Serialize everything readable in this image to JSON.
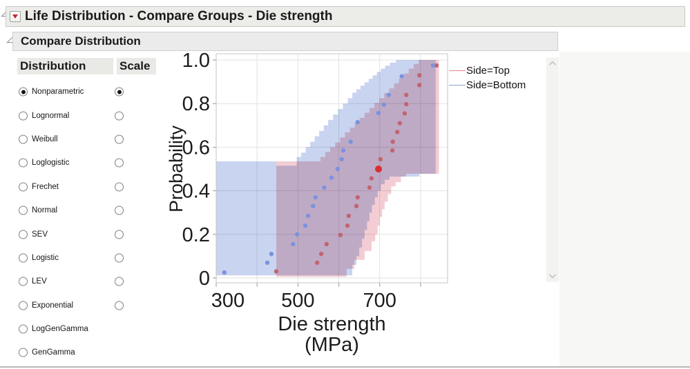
{
  "window": {
    "title": "Life Distribution - Compare Groups - Die strength",
    "section_title": "Compare Distribution"
  },
  "panel": {
    "columns": [
      "Distribution",
      "Scale"
    ],
    "rows": [
      {
        "label": "Nonparametric",
        "dist_selected": true,
        "scale_selected": true,
        "has_scale": true
      },
      {
        "label": "Lognormal",
        "dist_selected": false,
        "scale_selected": false,
        "has_scale": true
      },
      {
        "label": "Weibull",
        "dist_selected": false,
        "scale_selected": false,
        "has_scale": true
      },
      {
        "label": "Loglogistic",
        "dist_selected": false,
        "scale_selected": false,
        "has_scale": true
      },
      {
        "label": "Frechet",
        "dist_selected": false,
        "scale_selected": false,
        "has_scale": true
      },
      {
        "label": "Normal",
        "dist_selected": false,
        "scale_selected": false,
        "has_scale": true
      },
      {
        "label": "SEV",
        "dist_selected": false,
        "scale_selected": false,
        "has_scale": true
      },
      {
        "label": "Logistic",
        "dist_selected": false,
        "scale_selected": false,
        "has_scale": true
      },
      {
        "label": "LEV",
        "dist_selected": false,
        "scale_selected": false,
        "has_scale": true
      },
      {
        "label": "Exponential",
        "dist_selected": false,
        "scale_selected": false,
        "has_scale": true
      },
      {
        "label": "LogGenGamma",
        "dist_selected": false,
        "scale_selected": false,
        "has_scale": false
      },
      {
        "label": "GenGamma",
        "dist_selected": false,
        "scale_selected": false,
        "has_scale": false
      }
    ]
  },
  "chart_data": {
    "type": "step-band-scatter",
    "title": "",
    "xlabel": "Die strength",
    "xlabel_unit": "(MPa)",
    "ylabel": "Probability",
    "xlim": [
      300,
      866
    ],
    "ylim": [
      0,
      1
    ],
    "x_ticks": [
      300,
      400,
      500,
      600,
      700,
      800
    ],
    "x_labeled_ticks": [
      300,
      500,
      700
    ],
    "y_ticks": [
      0,
      0.2,
      0.4,
      0.6,
      0.8,
      1
    ],
    "y_tick_labels": [
      "0",
      "0.2",
      "0.4",
      "0.6",
      "0.8",
      "1.0"
    ],
    "grid": true,
    "legend_position": "top-right-outside",
    "legend": [
      {
        "label": "Side=Top",
        "color": "#e2838d"
      },
      {
        "label": "Side=Bottom",
        "color": "#8b9fdb"
      }
    ],
    "series": [
      {
        "name": "Side=Top",
        "point_color": "#c06570",
        "band_color": "#f3cdd3",
        "points": [
          [
            447,
            0.03
          ],
          [
            547,
            0.07
          ],
          [
            557,
            0.11
          ],
          [
            570,
            0.155
          ],
          [
            604,
            0.197
          ],
          [
            621,
            0.24
          ],
          [
            624,
            0.285
          ],
          [
            643,
            0.33
          ],
          [
            646,
            0.37
          ],
          [
            675,
            0.415
          ],
          [
            680,
            0.457
          ],
          [
            702,
            0.545
          ],
          [
            731,
            0.585
          ],
          [
            732,
            0.625
          ],
          [
            743,
            0.67
          ],
          [
            749,
            0.71
          ],
          [
            761,
            0.755
          ],
          [
            765,
            0.797
          ],
          [
            765,
            0.84
          ],
          [
            797,
            0.885
          ],
          [
            797,
            0.93
          ],
          [
            839,
            0.975
          ]
        ],
        "highlight_point": [
          697,
          0.5
        ],
        "highlight_color": "#d8302f",
        "band_hi": [
          [
            447,
            0.535
          ],
          [
            555,
            0.555
          ],
          [
            567,
            0.578
          ],
          [
            579,
            0.6
          ],
          [
            591,
            0.622
          ],
          [
            603,
            0.645
          ],
          [
            615,
            0.668
          ],
          [
            627,
            0.69
          ],
          [
            639,
            0.713
          ],
          [
            651,
            0.735
          ],
          [
            663,
            0.758
          ],
          [
            675,
            0.78
          ],
          [
            687,
            0.803
          ],
          [
            699,
            0.825
          ],
          [
            711,
            0.848
          ],
          [
            723,
            0.87
          ],
          [
            735,
            0.893
          ],
          [
            747,
            0.915
          ],
          [
            759,
            0.938
          ],
          [
            771,
            0.96
          ],
          [
            783,
            0.982
          ],
          [
            795,
            1.0
          ]
        ],
        "band_lo": [
          [
            447,
            0.005
          ],
          [
            619,
            0.042
          ],
          [
            638,
            0.083
          ],
          [
            663,
            0.124
          ],
          [
            680,
            0.168
          ],
          [
            689,
            0.2
          ],
          [
            695,
            0.24
          ],
          [
            700,
            0.28
          ],
          [
            706,
            0.315
          ],
          [
            712,
            0.35
          ],
          [
            720,
            0.385
          ],
          [
            728,
            0.42
          ],
          [
            739,
            0.44
          ],
          [
            752,
            0.465
          ],
          [
            764,
            0.478
          ]
        ],
        "band_end": 845
      },
      {
        "name": "Side=Bottom",
        "point_color": "#7b93dd",
        "band_color": "#c9d4f0",
        "points": [
          [
            320,
            0.025
          ],
          [
            425,
            0.07
          ],
          [
            435,
            0.11
          ],
          [
            488,
            0.155
          ],
          [
            498,
            0.2
          ],
          [
            518,
            0.24
          ],
          [
            525,
            0.285
          ],
          [
            537,
            0.33
          ],
          [
            543,
            0.37
          ],
          [
            564,
            0.415
          ],
          [
            582,
            0.46
          ],
          [
            597,
            0.5
          ],
          [
            607,
            0.545
          ],
          [
            611,
            0.585
          ],
          [
            629,
            0.625
          ],
          [
            646,
            0.715
          ],
          [
            697,
            0.757
          ],
          [
            710,
            0.795
          ],
          [
            722,
            0.84
          ],
          [
            754,
            0.925
          ],
          [
            830,
            0.975
          ]
        ],
        "band_hi": [
          [
            300,
            0.535
          ],
          [
            447,
            0.515
          ],
          [
            497,
            0.555
          ],
          [
            508,
            0.575
          ],
          [
            519,
            0.6
          ],
          [
            530,
            0.625
          ],
          [
            541,
            0.65
          ],
          [
            552,
            0.675
          ],
          [
            563,
            0.7
          ],
          [
            574,
            0.725
          ],
          [
            586,
            0.75
          ],
          [
            598,
            0.775
          ],
          [
            610,
            0.8
          ],
          [
            622,
            0.825
          ],
          [
            633,
            0.85
          ],
          [
            643,
            0.866
          ],
          [
            653,
            0.882
          ],
          [
            663,
            0.898
          ],
          [
            673,
            0.914
          ],
          [
            683,
            0.93
          ],
          [
            693,
            0.946
          ],
          [
            703,
            0.96
          ],
          [
            713,
            0.974
          ],
          [
            725,
            0.988
          ],
          [
            740,
            1.0
          ]
        ],
        "band_lo": [
          [
            300,
            0.012
          ],
          [
            633,
            0.06
          ],
          [
            643,
            0.1
          ],
          [
            650,
            0.14
          ],
          [
            657,
            0.18
          ],
          [
            663,
            0.22
          ],
          [
            669,
            0.26
          ],
          [
            675,
            0.3
          ],
          [
            681,
            0.335
          ],
          [
            688,
            0.37
          ],
          [
            695,
            0.4
          ],
          [
            703,
            0.43
          ],
          [
            712,
            0.45
          ],
          [
            724,
            0.465
          ],
          [
            797,
            0.478
          ]
        ],
        "band_end": 837
      }
    ]
  },
  "icons": {
    "outline_disclosure": "disclosure-triangle",
    "menu_button": "red-triangle-down",
    "scroll_up": "chevron-up",
    "scroll_down": "chevron-down"
  }
}
